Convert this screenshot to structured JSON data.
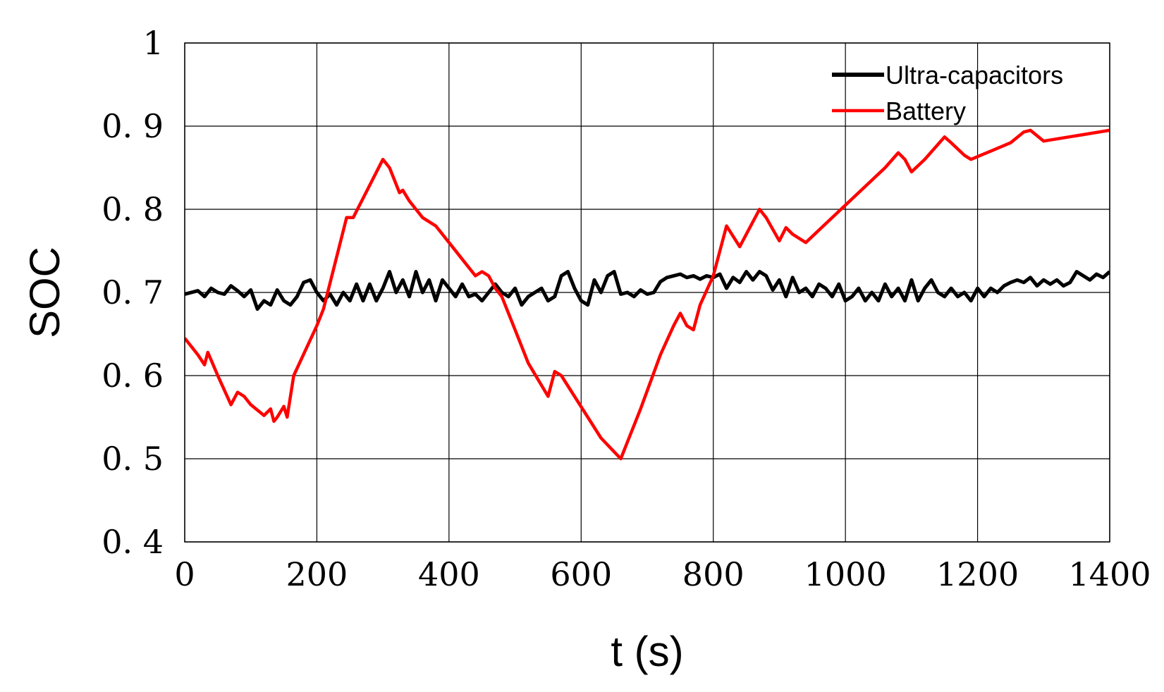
{
  "chart_data": {
    "type": "line",
    "xlabel": "t (s)",
    "ylabel": "SOC",
    "xlim": [
      0,
      1400
    ],
    "ylim": [
      0.4,
      1.0
    ],
    "x_ticks": [
      0,
      200,
      400,
      600,
      800,
      1000,
      1200,
      1400
    ],
    "x_tick_labels": [
      "0",
      "200",
      "400",
      "600",
      "800",
      "1000",
      "1200",
      "1400"
    ],
    "y_ticks": [
      0.4,
      0.5,
      0.6,
      0.7,
      0.8,
      0.9,
      1.0
    ],
    "y_tick_labels": [
      "0. 4",
      "0. 5",
      "0. 6",
      "0. 7",
      "0. 8",
      "0. 9",
      "1"
    ],
    "grid": true,
    "legend_position": "top-right",
    "series": [
      {
        "name": "Ultra-capacitors",
        "color": "#000000",
        "x": [
          0,
          20,
          30,
          40,
          50,
          60,
          70,
          80,
          90,
          100,
          110,
          120,
          130,
          140,
          150,
          160,
          170,
          180,
          190,
          200,
          210,
          220,
          230,
          240,
          250,
          260,
          270,
          280,
          290,
          300,
          310,
          320,
          330,
          340,
          350,
          360,
          370,
          380,
          390,
          400,
          410,
          420,
          430,
          440,
          450,
          460,
          470,
          480,
          490,
          500,
          510,
          520,
          530,
          540,
          550,
          560,
          570,
          580,
          590,
          600,
          610,
          620,
          630,
          640,
          650,
          660,
          670,
          680,
          690,
          700,
          710,
          720,
          730,
          740,
          750,
          760,
          770,
          780,
          790,
          800,
          810,
          820,
          830,
          840,
          850,
          860,
          870,
          880,
          890,
          900,
          910,
          920,
          930,
          940,
          950,
          960,
          970,
          980,
          990,
          1000,
          1010,
          1020,
          1030,
          1040,
          1050,
          1060,
          1070,
          1080,
          1090,
          1100,
          1110,
          1120,
          1130,
          1140,
          1150,
          1160,
          1170,
          1180,
          1190,
          1200,
          1210,
          1220,
          1230,
          1240,
          1250,
          1260,
          1270,
          1280,
          1290,
          1300,
          1310,
          1320,
          1330,
          1340,
          1350,
          1360,
          1370,
          1380,
          1390,
          1400
        ],
        "y": [
          0.698,
          0.702,
          0.695,
          0.705,
          0.7,
          0.698,
          0.708,
          0.702,
          0.695,
          0.703,
          0.68,
          0.69,
          0.685,
          0.703,
          0.69,
          0.685,
          0.695,
          0.712,
          0.715,
          0.7,
          0.69,
          0.698,
          0.685,
          0.7,
          0.69,
          0.71,
          0.69,
          0.71,
          0.69,
          0.705,
          0.725,
          0.7,
          0.715,
          0.695,
          0.725,
          0.7,
          0.715,
          0.69,
          0.715,
          0.705,
          0.695,
          0.71,
          0.695,
          0.698,
          0.69,
          0.7,
          0.71,
          0.7,
          0.695,
          0.705,
          0.685,
          0.695,
          0.7,
          0.705,
          0.69,
          0.695,
          0.72,
          0.725,
          0.705,
          0.69,
          0.685,
          0.715,
          0.7,
          0.72,
          0.725,
          0.698,
          0.7,
          0.695,
          0.703,
          0.698,
          0.7,
          0.713,
          0.718,
          0.72,
          0.722,
          0.718,
          0.72,
          0.716,
          0.72,
          0.718,
          0.722,
          0.705,
          0.718,
          0.712,
          0.725,
          0.715,
          0.725,
          0.72,
          0.703,
          0.715,
          0.695,
          0.718,
          0.7,
          0.705,
          0.695,
          0.71,
          0.705,
          0.695,
          0.71,
          0.69,
          0.695,
          0.705,
          0.69,
          0.7,
          0.69,
          0.71,
          0.695,
          0.705,
          0.69,
          0.715,
          0.69,
          0.705,
          0.715,
          0.7,
          0.695,
          0.705,
          0.695,
          0.7,
          0.69,
          0.705,
          0.695,
          0.705,
          0.7,
          0.708,
          0.712,
          0.715,
          0.712,
          0.718,
          0.708,
          0.715,
          0.71,
          0.715,
          0.708,
          0.712,
          0.725,
          0.72,
          0.715,
          0.722,
          0.718,
          0.725
        ]
      },
      {
        "name": "Battery",
        "color": "#ff0000",
        "x": [
          0,
          20,
          30,
          35,
          50,
          70,
          80,
          90,
          100,
          120,
          130,
          135,
          140,
          150,
          155,
          165,
          200,
          210,
          245,
          255,
          300,
          310,
          315,
          325,
          330,
          340,
          350,
          360,
          370,
          380,
          390,
          400,
          420,
          440,
          450,
          460,
          470,
          480,
          500,
          520,
          550,
          560,
          570,
          590,
          610,
          630,
          660,
          690,
          720,
          740,
          750,
          760,
          770,
          780,
          800,
          820,
          840,
          870,
          880,
          900,
          910,
          920,
          940,
          980,
          1000,
          1020,
          1040,
          1060,
          1080,
          1090,
          1100,
          1120,
          1140,
          1150,
          1160,
          1180,
          1190,
          1220,
          1250,
          1270,
          1280,
          1300,
          1400
        ],
        "y": [
          0.645,
          0.625,
          0.613,
          0.628,
          0.6,
          0.565,
          0.58,
          0.575,
          0.565,
          0.552,
          0.56,
          0.545,
          0.55,
          0.563,
          0.55,
          0.6,
          0.66,
          0.68,
          0.79,
          0.79,
          0.86,
          0.85,
          0.84,
          0.82,
          0.823,
          0.81,
          0.8,
          0.79,
          0.785,
          0.78,
          0.77,
          0.76,
          0.74,
          0.72,
          0.725,
          0.72,
          0.705,
          0.695,
          0.655,
          0.615,
          0.575,
          0.605,
          0.6,
          0.575,
          0.55,
          0.525,
          0.5,
          0.56,
          0.625,
          0.66,
          0.675,
          0.66,
          0.655,
          0.685,
          0.72,
          0.78,
          0.755,
          0.8,
          0.79,
          0.762,
          0.778,
          0.77,
          0.76,
          0.79,
          0.805,
          0.82,
          0.835,
          0.85,
          0.868,
          0.86,
          0.845,
          0.86,
          0.878,
          0.887,
          0.88,
          0.865,
          0.86,
          0.87,
          0.88,
          0.893,
          0.895,
          0.882,
          0.895
        ]
      }
    ]
  }
}
